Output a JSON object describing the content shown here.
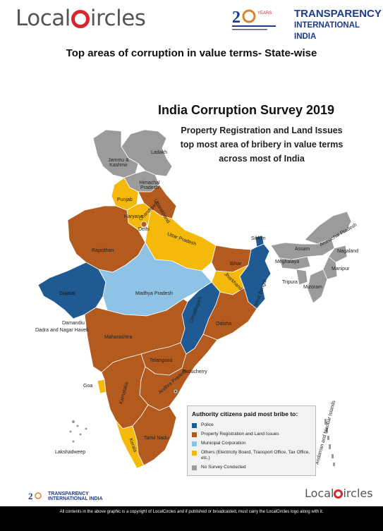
{
  "header": {
    "localcircles_prefix": "Local",
    "localcircles_suffix": "ircles",
    "ti_line1": "TRANSPARENCY",
    "ti_line2": "INTERNATIONAL INDIA",
    "ti_years": "20 YEARS"
  },
  "main_title": "Top areas of corruption in value terms- State-wise",
  "survey": {
    "title": "India Corruption Survey 2019",
    "subtitle_line1": "Property Registration and Land Issues",
    "subtitle_line2": "top most area of bribery in value terms",
    "subtitle_line3": "across most of India"
  },
  "colors": {
    "police": "#1f5b92",
    "property": "#b35a1f",
    "municipal": "#8ec3e6",
    "others": "#f5b90c",
    "no_survey": "#9b9b9b"
  },
  "states": {
    "ladakh": "Ladakh",
    "jk": "Jammu & Kashmir",
    "himachal": "Himachal Pradesh",
    "punjab": "Punjab",
    "chandigarh": "Chandigarh",
    "uttarakhand": "Uttarakhand",
    "haryana": "Haryana",
    "delhi": "Delhi",
    "rajasthan": "Rajasthan",
    "up": "Uttar Pradesh",
    "sikkim": "Sikkim",
    "arunachal": "Arunachal Pradesh",
    "assam": "Assam",
    "nagaland": "Nagaland",
    "meghalaya": "Meghalaya",
    "manipur": "Manipur",
    "tripura": "Tripura",
    "mizoram": "Mizoram",
    "bihar": "Bihar",
    "jharkhand": "Jharkhand",
    "westbengal": "West Bengal",
    "gujarat": "Gujarat",
    "mp": "Madhya Pradesh",
    "chhattisgarh": "Chhattisgarh",
    "odisha": "Odisha",
    "daman": "Damandiu",
    "dadra": "Dadra and Nagar Haveli",
    "maharashtra": "Maharashtra",
    "telangana": "Telangana",
    "goa": "Goa",
    "karnataka": "Karnataka",
    "ap": "Andhra Pradesh",
    "puducherry": "Puducherry",
    "kerala": "Kerala",
    "tamilnadu": "Tamil Nadu",
    "lakshadweep": "Lakshadweep",
    "andaman": "Andaman and Nicobar Islands"
  },
  "legend": {
    "title": "Authority citizens paid most bribe to:",
    "items": [
      {
        "label": "Police",
        "color": "#1f5b92"
      },
      {
        "label": "Property Registration and Land Issues",
        "color": "#b35a1f"
      },
      {
        "label": "Municipal Corporation",
        "color": "#8ec3e6"
      },
      {
        "label": "Others (Electricity Board, Transport Office, Tax Office, etc.)",
        "color": "#f5b90c"
      },
      {
        "label": "No Survey Conducted",
        "color": "#9b9b9b"
      }
    ]
  },
  "footer": {
    "copyright": "All contents in the above graphic is a copyright of LocalCircles and if published or broadcasted, must carry the LocalCircles logo along with it.",
    "ti_small_line1": "TRANSPARENCY",
    "ti_small_line2": "INTERNATIONAL INDIA",
    "lc_small_prefix": "Local",
    "lc_small_suffix": "ircles"
  }
}
